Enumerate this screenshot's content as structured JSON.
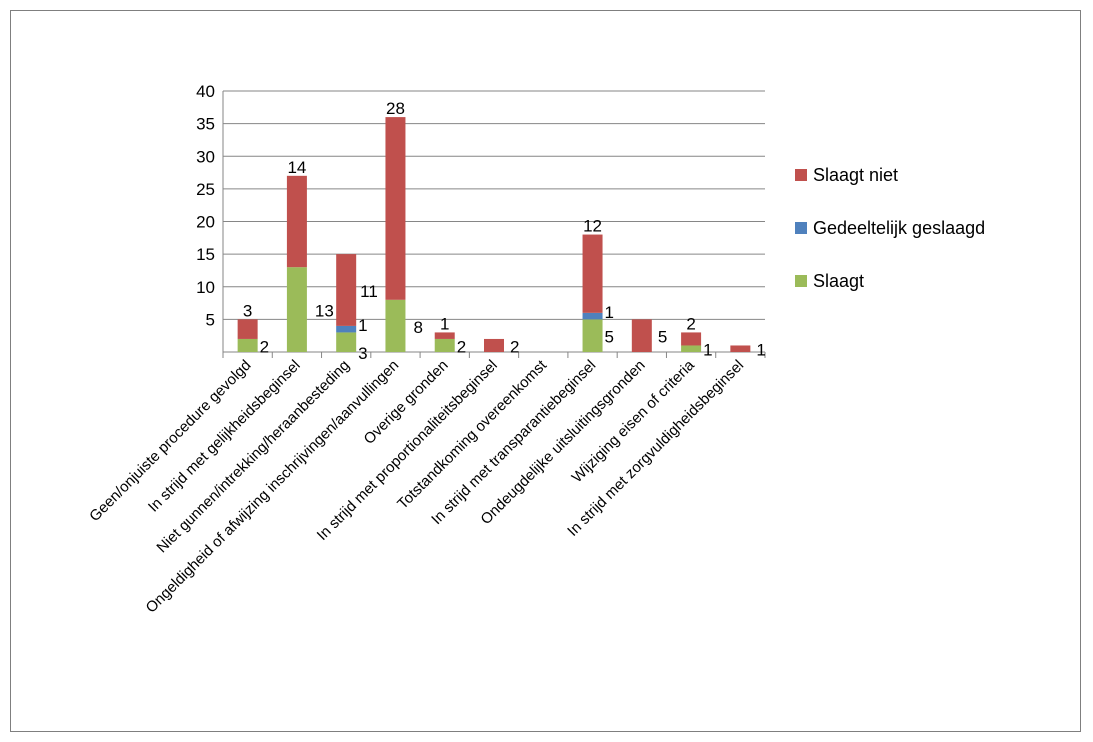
{
  "chart_data": {
    "type": "bar",
    "stacked": true,
    "categories": [
      "Geen/onjuiste procedure gevolgd",
      "In strijd met gelijkheidsbeginsel",
      "Niet gunnen/intrekking/heraanbesteding",
      "Ongeldigheid of afwijzing inschrijvingen/aanvullingen",
      "Overige gronden",
      "In strijd met proportionaliteitsbeginsel",
      "Totstandkoming overeenkomst",
      "In strijd met transparantiebeginsel",
      "Ondeugdelijke uitsluitingsgronden",
      "Wijziging eisen of criteria",
      "In strijd met zorgvuldigheidsbeginsel"
    ],
    "series": [
      {
        "name": "Slaagt",
        "color": "#9bbb59",
        "values": [
          2,
          13,
          3,
          8,
          2,
          0,
          0,
          5,
          0,
          1,
          0
        ]
      },
      {
        "name": "Gedeeltelijk geslaagd",
        "color": "#4f81bd",
        "values": [
          0,
          0,
          1,
          0,
          0,
          0,
          0,
          1,
          0,
          0,
          0
        ]
      },
      {
        "name": "Slaagt niet",
        "color": "#c0504d",
        "values": [
          3,
          14,
          11,
          28,
          1,
          2,
          0,
          12,
          5,
          2,
          1
        ]
      }
    ],
    "ylim": [
      0,
      40
    ],
    "yticks": [
      5,
      10,
      15,
      20,
      25,
      30,
      35,
      40
    ],
    "grid": true,
    "legend": "right",
    "legend_order": [
      "Slaagt niet",
      "Gedeeltelijk geslaagd",
      "Slaagt"
    ]
  }
}
